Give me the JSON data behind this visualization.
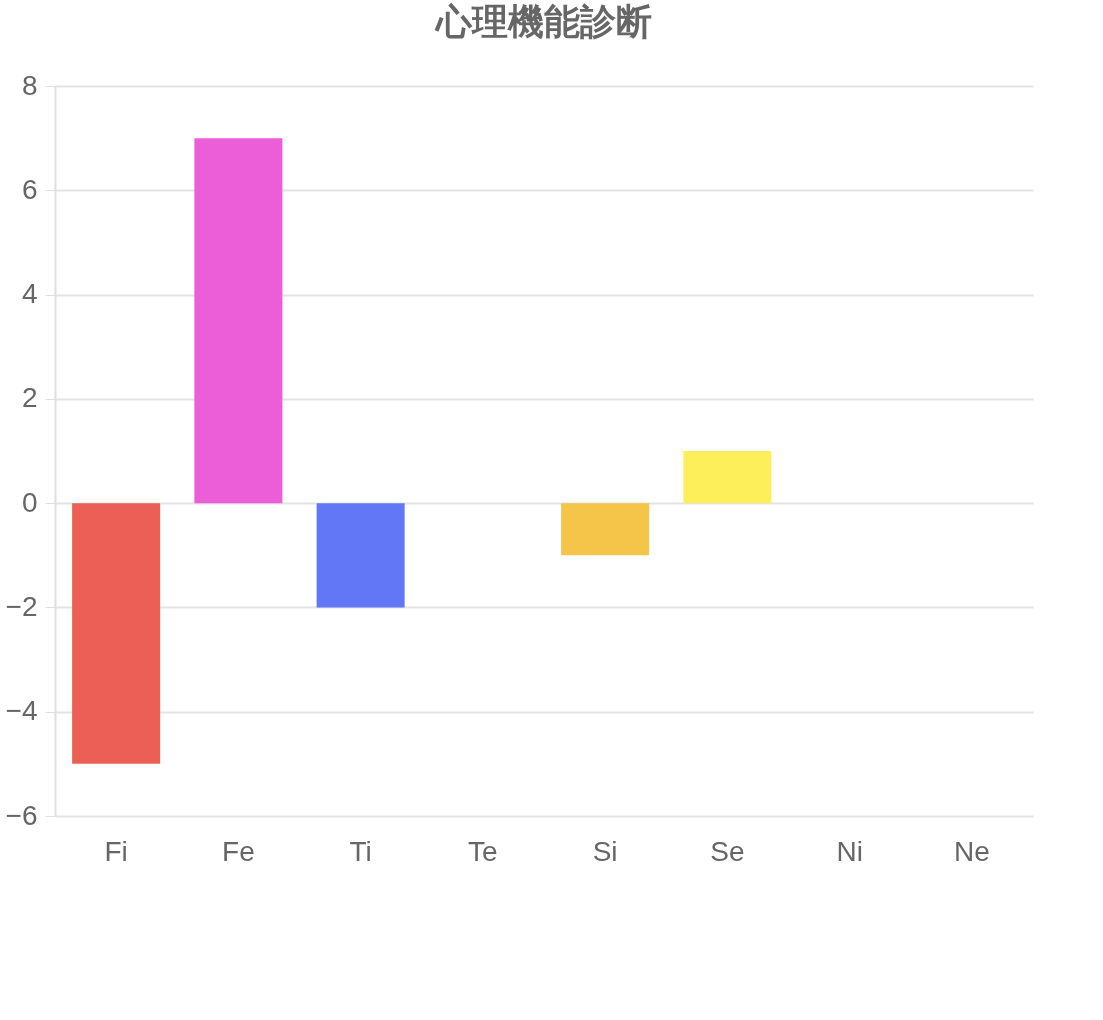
{
  "chart_data": {
    "type": "bar",
    "title": "心理機能診断",
    "categories": [
      "Fi",
      "Fe",
      "Ti",
      "Te",
      "Si",
      "Se",
      "Ni",
      "Ne"
    ],
    "values": [
      -5,
      7,
      -2,
      0,
      -1,
      1,
      0,
      0
    ],
    "colors": [
      "#eb5f56",
      "#eb5ed8",
      "#6277f5",
      "#5fc46b",
      "#f5c54a",
      "#fcef5a",
      "#5fd7e6",
      "#a36ff0"
    ],
    "ylim": [
      -6,
      8
    ],
    "yticks": [
      -6,
      -4,
      -2,
      0,
      2,
      4,
      6,
      8
    ],
    "grid": "y",
    "legend": false
  }
}
